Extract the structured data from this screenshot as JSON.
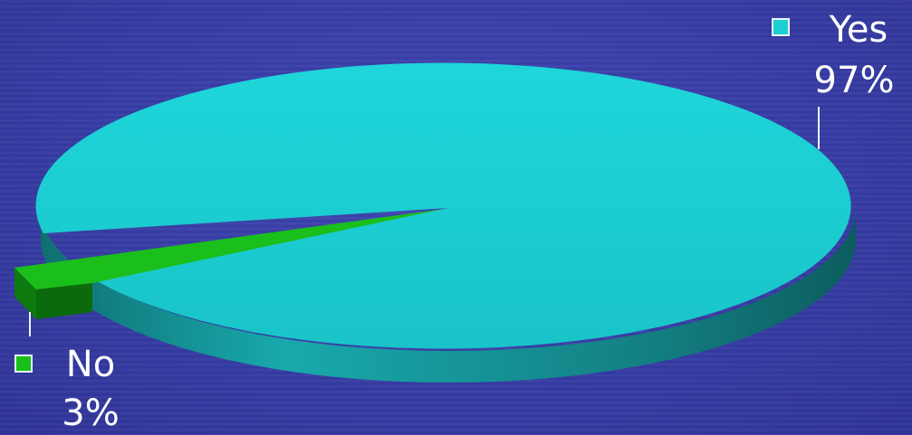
{
  "chart_data": {
    "type": "pie",
    "style": "3d-exploded",
    "slices": [
      {
        "label": "Yes",
        "value": 97,
        "display": "97%",
        "color": "#1ccfd3",
        "side_color": "#149c9e"
      },
      {
        "label": "No",
        "value": 3,
        "display": "3%",
        "color": "#19c019",
        "side_color": "#0f8a10"
      }
    ],
    "title": "",
    "legend": "inline-labels"
  }
}
